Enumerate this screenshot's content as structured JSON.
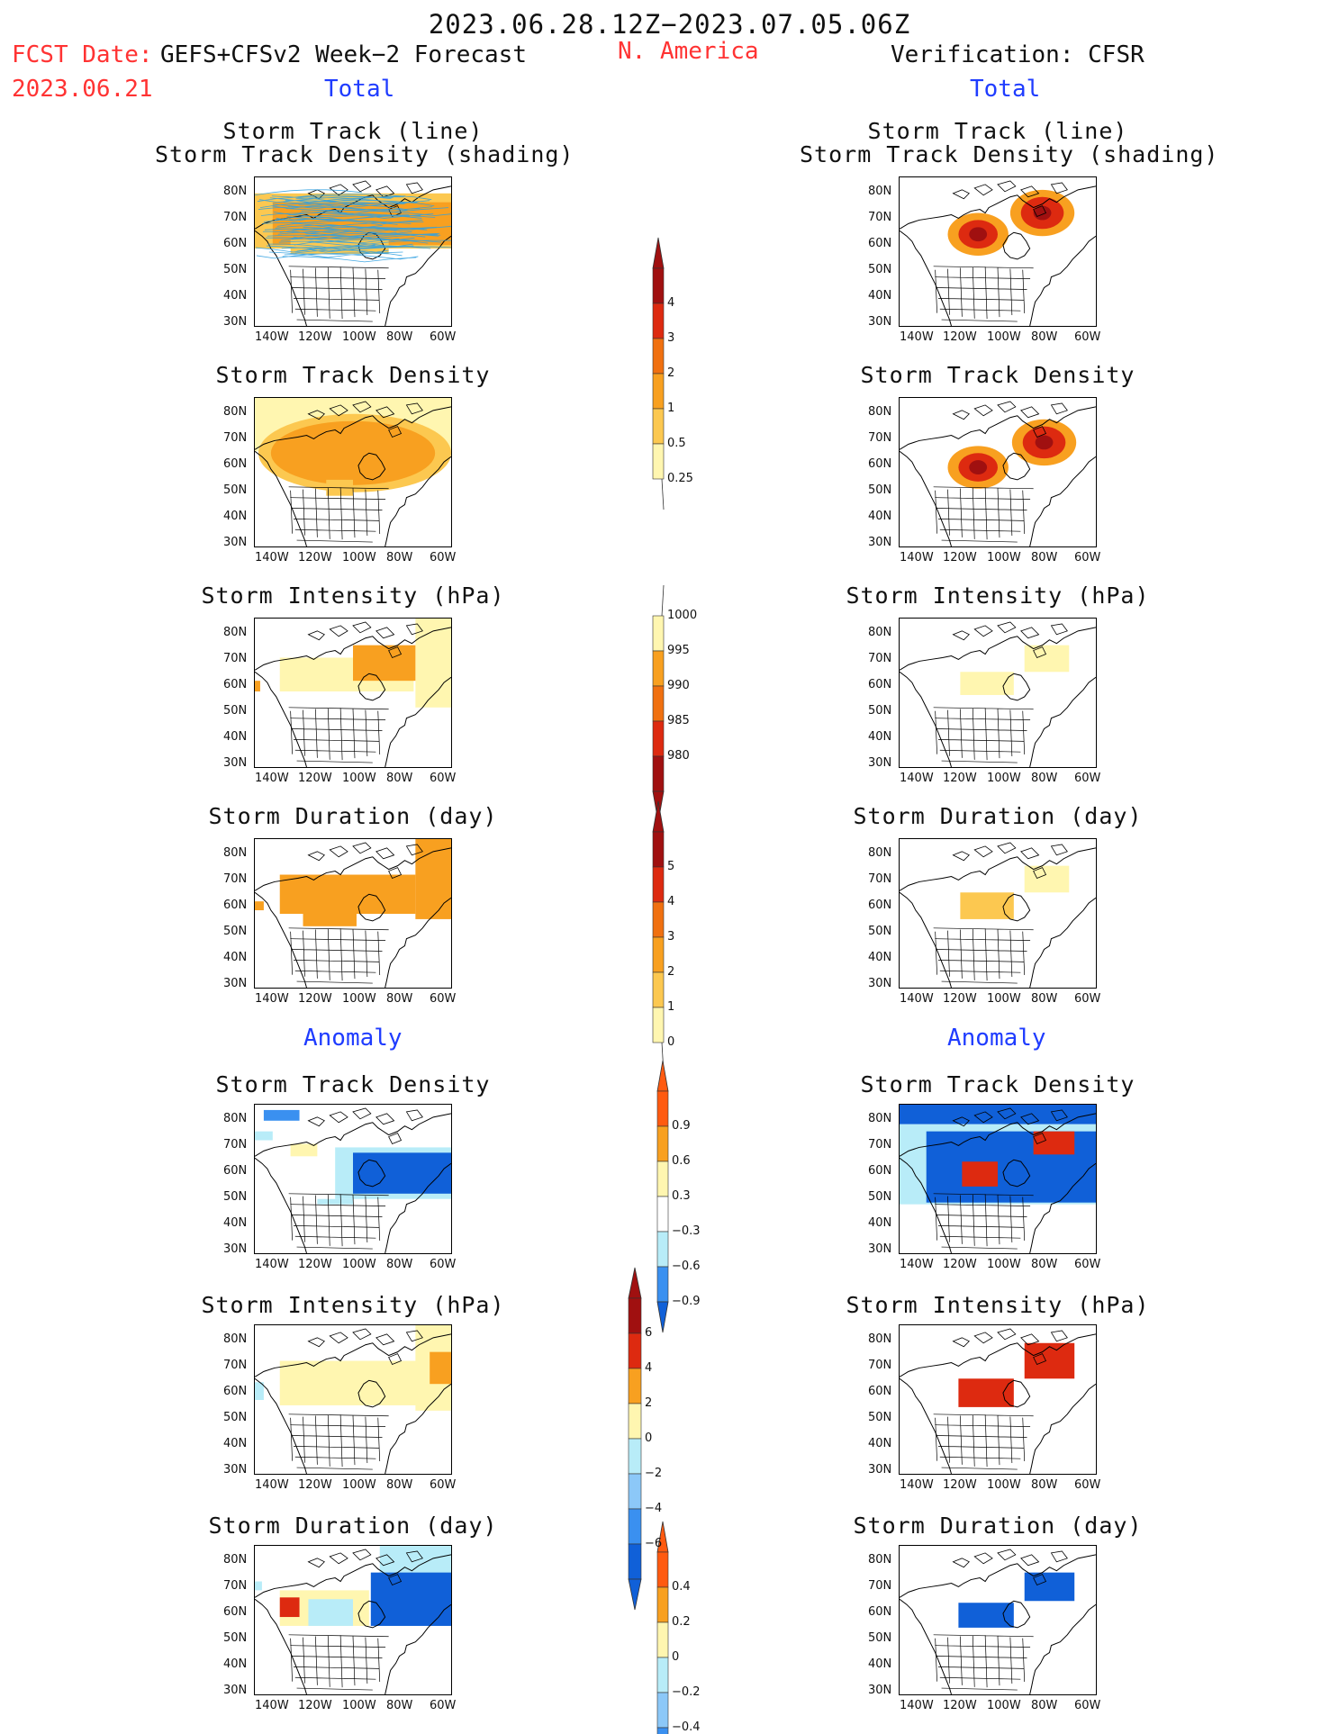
{
  "header": {
    "time_range": "2023.06.28.12Z−2023.07.05.06Z",
    "fcst_label": "FCST Date:",
    "fcst_date": "2023.06.21",
    "model": "GEFS+CFSv2 Week−2 Forecast",
    "region": "N. America",
    "verification": "Verification: CFSR"
  },
  "sections": {
    "total": "Total",
    "anomaly": "Anomaly"
  },
  "axes": {
    "lat_ticks": [
      "80N",
      "70N",
      "60N",
      "50N",
      "40N",
      "30N"
    ],
    "lon_ticks": [
      "140W",
      "120W",
      "100W",
      "80W",
      "60W"
    ]
  },
  "panels": {
    "track_line": "Storm Track (line)",
    "track_shading": "Storm Track Density (shading)",
    "track_density": "Storm Track Density",
    "intensity": "Storm Intensity (hPa)",
    "duration": "Storm Duration (day)"
  },
  "colorbars": {
    "density_total": [
      "4",
      "3",
      "2",
      "1",
      "0.5",
      "0.25"
    ],
    "intensity_total": [
      "1000",
      "995",
      "990",
      "985",
      "980"
    ],
    "duration_total": [
      "5",
      "4",
      "3",
      "2",
      "1",
      "0"
    ],
    "density_anom": [
      "0.9",
      "0.6",
      "0.3",
      "−0.3",
      "−0.6",
      "−0.9"
    ],
    "intensity_anom": [
      "6",
      "4",
      "2",
      "0",
      "−2",
      "−4",
      "−6"
    ],
    "duration_anom": [
      "0.4",
      "0.2",
      "0",
      "−0.2",
      "−0.4"
    ]
  },
  "colors": {
    "pale_yellow": "#fff6b0",
    "light_orange": "#fcc850",
    "orange": "#f8a020",
    "dark_orange": "#f07010",
    "red": "#dd2a10",
    "dark_red": "#a01010",
    "light_blue": "#b8ecf8",
    "mid_blue": "#3a90f0",
    "dark_blue": "#1060d8",
    "track_line": "#30a0e0"
  }
}
